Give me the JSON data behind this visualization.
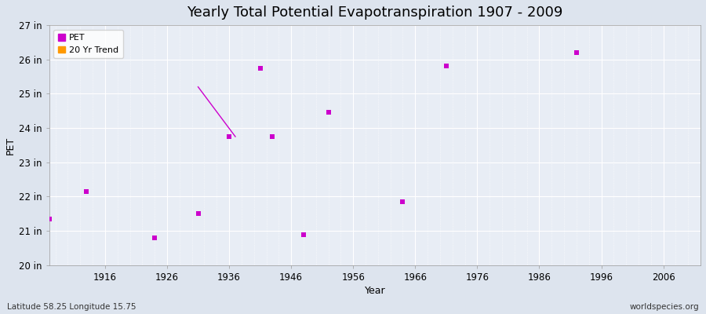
{
  "title": "Yearly Total Potential Evapotranspiration 1907 - 2009",
  "xlabel": "Year",
  "ylabel": "PET",
  "subtitle_left": "Latitude 58.25 Longitude 15.75",
  "subtitle_right": "worldspecies.org",
  "background_color": "#dde4ee",
  "plot_bg_color": "#e8edf5",
  "grid_major_color": "#ffffff",
  "grid_minor_color": "#ffffff",
  "ylim": [
    20,
    27
  ],
  "xlim": [
    1907,
    2012
  ],
  "ytick_labels": [
    "20 in",
    "21 in",
    "22 in",
    "23 in",
    "24 in",
    "25 in",
    "26 in",
    "27 in"
  ],
  "ytick_values": [
    20,
    21,
    22,
    23,
    24,
    25,
    26,
    27
  ],
  "xtick_values": [
    1916,
    1926,
    1936,
    1946,
    1956,
    1966,
    1976,
    1986,
    1996,
    2006
  ],
  "pet_years": [
    1907,
    1913,
    1924,
    1931,
    1936,
    1941,
    1943,
    1948,
    1952,
    1964,
    1971,
    1992
  ],
  "pet_values": [
    21.35,
    22.15,
    20.8,
    21.5,
    23.75,
    25.75,
    23.75,
    20.9,
    24.45,
    21.85,
    25.8,
    26.2
  ],
  "trend_x": [
    1931,
    1937
  ],
  "trend_y": [
    25.2,
    23.75
  ],
  "pet_color": "#cc00cc",
  "trend_color": "#ff9900",
  "marker_size": 25,
  "title_fontsize": 13
}
